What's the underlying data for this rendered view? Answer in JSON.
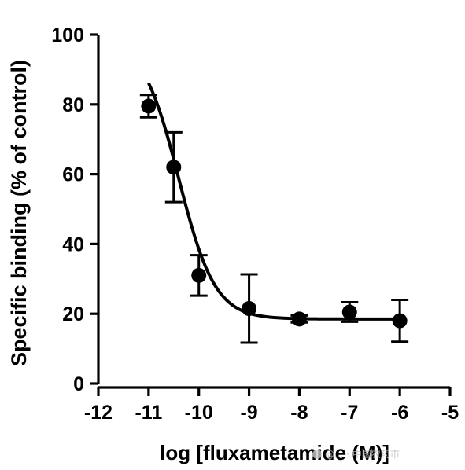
{
  "chart_data": {
    "type": "scatter",
    "title": "",
    "xlabel": "log [fluxametamide (M)]",
    "ylabel": "Specific binding (% of control)",
    "xlim": [
      -12,
      -5
    ],
    "ylim": [
      0,
      100
    ],
    "x_ticks": [
      -12,
      -11,
      -10,
      -9,
      -8,
      -7,
      -6,
      -5
    ],
    "y_ticks": [
      0,
      20,
      40,
      60,
      80,
      100
    ],
    "grid": false,
    "legend": "none",
    "series": [
      {
        "x": [
          -11,
          -10.5,
          -10,
          -9,
          -8,
          -7,
          -6
        ],
        "y": [
          79.5,
          62,
          31,
          21.5,
          18.5,
          20.5,
          18
        ],
        "error": [
          3.2,
          10,
          5.8,
          9.8,
          1,
          2.8,
          6
        ]
      }
    ],
    "fit_curve": {
      "model": "sigmoidal dose-response",
      "bottom": 18.5,
      "top": 99,
      "log_ec50": -10.4,
      "hill_slope": -1.2
    },
    "color": "#000000"
  },
  "watermark": {
    "text": "@... · 中国农药市"
  }
}
